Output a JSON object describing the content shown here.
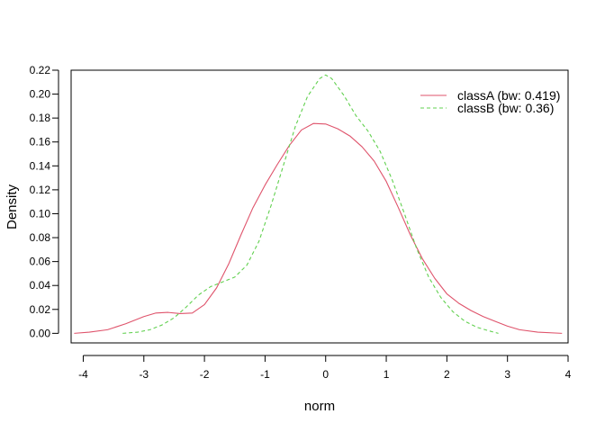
{
  "chart_data": {
    "type": "line",
    "title": "",
    "xlabel": "norm",
    "ylabel": "Density",
    "xlim": [
      -4.2,
      4.0
    ],
    "ylim": [
      -0.008,
      0.22
    ],
    "xticks": [
      -4,
      -3,
      -2,
      -1,
      0,
      1,
      2,
      3,
      4
    ],
    "xtick_labels": [
      "-4",
      "-3",
      "-2",
      "-1",
      "0",
      "1",
      "2",
      "3",
      "4"
    ],
    "yticks": [
      0.0,
      0.02,
      0.04,
      0.06,
      0.08,
      0.1,
      0.12,
      0.14,
      0.16,
      0.18,
      0.2,
      0.22
    ],
    "ytick_labels": [
      "0.00",
      "0.02",
      "0.04",
      "0.06",
      "0.08",
      "0.10",
      "0.12",
      "0.14",
      "0.16",
      "0.18",
      "0.20",
      "0.22"
    ],
    "grid": false,
    "legend_position": "top-right",
    "series": [
      {
        "name": "classA (bw: 0.419)",
        "color": "#DF536B",
        "dash": "solid",
        "points": [
          [
            -4.15,
            0.0
          ],
          [
            -3.9,
            0.001
          ],
          [
            -3.6,
            0.003
          ],
          [
            -3.3,
            0.008
          ],
          [
            -3.0,
            0.014
          ],
          [
            -2.8,
            0.017
          ],
          [
            -2.6,
            0.0175
          ],
          [
            -2.4,
            0.0165
          ],
          [
            -2.2,
            0.017
          ],
          [
            -2.0,
            0.024
          ],
          [
            -1.8,
            0.038
          ],
          [
            -1.6,
            0.058
          ],
          [
            -1.4,
            0.082
          ],
          [
            -1.2,
            0.105
          ],
          [
            -1.0,
            0.124
          ],
          [
            -0.8,
            0.141
          ],
          [
            -0.6,
            0.157
          ],
          [
            -0.4,
            0.17
          ],
          [
            -0.2,
            0.1755
          ],
          [
            0.0,
            0.175
          ],
          [
            0.2,
            0.171
          ],
          [
            0.4,
            0.165
          ],
          [
            0.6,
            0.156
          ],
          [
            0.8,
            0.144
          ],
          [
            1.0,
            0.127
          ],
          [
            1.2,
            0.105
          ],
          [
            1.4,
            0.082
          ],
          [
            1.6,
            0.062
          ],
          [
            1.8,
            0.046
          ],
          [
            2.0,
            0.033
          ],
          [
            2.2,
            0.025
          ],
          [
            2.4,
            0.019
          ],
          [
            2.6,
            0.014
          ],
          [
            2.8,
            0.01
          ],
          [
            3.0,
            0.006
          ],
          [
            3.2,
            0.003
          ],
          [
            3.5,
            0.001
          ],
          [
            3.9,
            0.0
          ]
        ]
      },
      {
        "name": "classB (bw: 0.36)",
        "color": "#61D04F",
        "dash": "dashed",
        "points": [
          [
            -3.35,
            0.0
          ],
          [
            -3.1,
            0.001
          ],
          [
            -2.9,
            0.003
          ],
          [
            -2.7,
            0.007
          ],
          [
            -2.5,
            0.013
          ],
          [
            -2.3,
            0.022
          ],
          [
            -2.1,
            0.032
          ],
          [
            -1.9,
            0.039
          ],
          [
            -1.7,
            0.043
          ],
          [
            -1.5,
            0.047
          ],
          [
            -1.3,
            0.057
          ],
          [
            -1.1,
            0.077
          ],
          [
            -0.9,
            0.107
          ],
          [
            -0.7,
            0.14
          ],
          [
            -0.5,
            0.173
          ],
          [
            -0.3,
            0.198
          ],
          [
            -0.1,
            0.213
          ],
          [
            0.0,
            0.216
          ],
          [
            0.1,
            0.213
          ],
          [
            0.3,
            0.199
          ],
          [
            0.5,
            0.182
          ],
          [
            0.7,
            0.169
          ],
          [
            0.9,
            0.152
          ],
          [
            1.1,
            0.128
          ],
          [
            1.3,
            0.1
          ],
          [
            1.5,
            0.071
          ],
          [
            1.7,
            0.047
          ],
          [
            1.9,
            0.03
          ],
          [
            2.1,
            0.018
          ],
          [
            2.3,
            0.01
          ],
          [
            2.5,
            0.005
          ],
          [
            2.7,
            0.002
          ],
          [
            2.85,
            0.0
          ]
        ]
      }
    ]
  }
}
